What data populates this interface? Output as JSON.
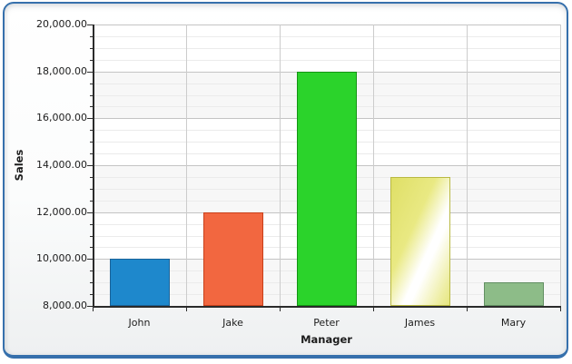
{
  "window": {
    "frame_border_color": "#3670AC",
    "background": "#ffffff"
  },
  "chart_data": {
    "type": "bar",
    "title": "",
    "xlabel": "Manager",
    "ylabel": "Sales",
    "categories": [
      "John",
      "Jake",
      "Peter",
      "James",
      "Mary"
    ],
    "values": [
      10000,
      12000,
      18000,
      13500,
      9000
    ],
    "ylim": [
      8000,
      20000
    ],
    "y_major_step": 2000,
    "y_minor_step": 500,
    "y_tick_labels": [
      "20,000.00",
      "18,000.00",
      "16,000.00",
      "14,000.00",
      "12,000.00",
      "10,000.00",
      "8,000.00"
    ],
    "grid": true,
    "legend": "none",
    "band_colors": [
      "#ffffff",
      "#f7f7f7"
    ],
    "gridline_colors": {
      "major": "#c4c4c4",
      "minor": "#ebebeb",
      "vertical": "#cccccc"
    },
    "axis_color": "#2b2b2b",
    "bar_styles": [
      {
        "name": "blue",
        "fill": "#1E88CC",
        "border": "#1A6298",
        "shine": null
      },
      {
        "name": "orange",
        "fill": "#F26740",
        "border": "#C8401A",
        "shine": null
      },
      {
        "name": "green",
        "fill": "#2BD32B",
        "border": "#149414",
        "shine": null
      },
      {
        "name": "yellow-shine",
        "fill": "#E3E36D",
        "border": "#B9B943",
        "shine": {
          "angle": 115,
          "stops": [
            [
              "#dfdf66",
              "0%"
            ],
            [
              "#e9e983",
              "38%"
            ],
            [
              "#ffffff",
              "60%"
            ],
            [
              "#ffffff",
              "66%"
            ],
            [
              "#ededa0",
              "90%"
            ],
            [
              "#e6e67f",
              "100%"
            ]
          ]
        }
      },
      {
        "name": "sage",
        "fill": "#8DBC88",
        "border": "#628F62",
        "shine": null
      }
    ]
  }
}
